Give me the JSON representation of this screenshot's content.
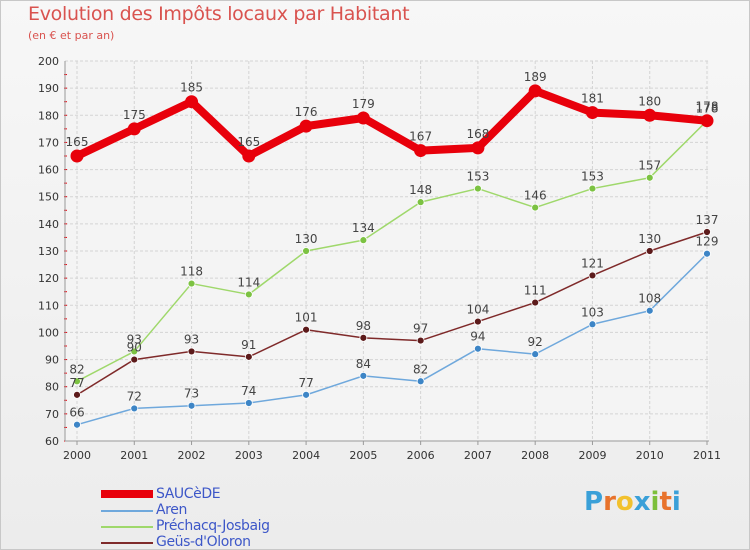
{
  "header": {
    "title": "Evolution des Impôts locaux par Habitant",
    "subtitle": "(en € et par an)"
  },
  "logo": {
    "text": "Proxiti",
    "letters": [
      "P",
      "r",
      "o",
      "x",
      "i",
      "t",
      "i"
    ],
    "letter_colors": [
      "#3aa0d8",
      "#e8732c",
      "#f2c12e",
      "#3aa0d8",
      "#7cbf3a",
      "#e8732c",
      "#3aa0d8"
    ]
  },
  "chart_data": {
    "type": "line",
    "title": "Evolution des Impôts locaux par Habitant",
    "subtitle": "(en € et par an)",
    "xlabel": "",
    "ylabel": "",
    "ylim": [
      60,
      200
    ],
    "ytick_step": 10,
    "grid": true,
    "legend_position": "bottom-left",
    "x": [
      "2000",
      "2001",
      "2002",
      "2003",
      "2004",
      "2005",
      "2006",
      "2007",
      "2008",
      "2009",
      "2010",
      "2011"
    ],
    "series": [
      {
        "name": "SAUCèDE",
        "color": "#e8000b",
        "marker_color": "#e8000b",
        "bold": true,
        "values": [
          165,
          175,
          185,
          165,
          176,
          179,
          167,
          168,
          189,
          181,
          180,
          178
        ],
        "labels": [
          "165",
          "175",
          "185",
          "165",
          "176",
          "179",
          "167",
          "168",
          "189",
          "181",
          "180",
          "178"
        ]
      },
      {
        "name": "Aren",
        "color": "#6fa8dc",
        "marker_color": "#3d85c6",
        "bold": false,
        "values": [
          66,
          72,
          73,
          74,
          77,
          84,
          82,
          94,
          92,
          103,
          108,
          129
        ],
        "labels": [
          "66",
          "72",
          "73",
          "74",
          "77",
          "84",
          "82",
          "94",
          "92",
          "103",
          "108",
          "129"
        ]
      },
      {
        "name": "Préchacq-Josbaig",
        "color": "#9fd86b",
        "marker_color": "#7cc242",
        "bold": false,
        "values": [
          82,
          93,
          118,
          114,
          130,
          134,
          148,
          153,
          146,
          153,
          157,
          178
        ],
        "labels": [
          "82",
          "93",
          "118",
          "114",
          "130",
          "134",
          "148",
          "153",
          "146",
          "153",
          "157",
          "178"
        ]
      },
      {
        "name": "Geüs-d'Oloron",
        "color": "#7f2a2a",
        "marker_color": "#5c1a1a",
        "bold": false,
        "values": [
          77,
          90,
          93,
          91,
          101,
          98,
          97,
          104,
          111,
          121,
          130,
          137
        ],
        "labels": [
          "77",
          "90",
          "93",
          "91",
          "101",
          "98",
          "97",
          "104",
          "111",
          "121",
          "130",
          "137"
        ]
      }
    ]
  }
}
